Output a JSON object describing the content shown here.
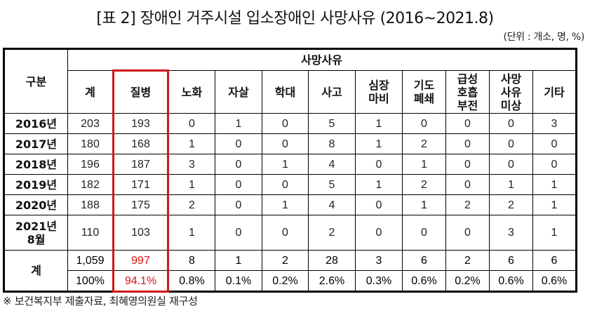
{
  "title": "[표 2] 장애인 거주시설 입소장애인 사망사유 (2016~2021.8)",
  "unit": "(단위 : 개소, 명, %)",
  "table": {
    "row_header": "구분",
    "group_header": "사망사유",
    "columns": [
      "계",
      "질병",
      "노화",
      "자살",
      "학대",
      "사고",
      "심장\n마비",
      "기도\n폐쇄",
      "급성\n호흡\n부전",
      "사망\n사유\n미상",
      "기타"
    ],
    "column_lines": [
      [
        "계"
      ],
      [
        "질병"
      ],
      [
        "노화"
      ],
      [
        "자살"
      ],
      [
        "학대"
      ],
      [
        "사고"
      ],
      [
        "심장",
        "마비"
      ],
      [
        "기도",
        "폐쇄"
      ],
      [
        "급성",
        "호흡",
        "부전"
      ],
      [
        "사망",
        "사유",
        "미상"
      ],
      [
        "기타"
      ]
    ],
    "rows": [
      {
        "label": "2016년",
        "values": [
          "203",
          "193",
          "0",
          "1",
          "0",
          "5",
          "1",
          "0",
          "0",
          "0",
          "3"
        ]
      },
      {
        "label": "2017년",
        "values": [
          "180",
          "168",
          "1",
          "0",
          "0",
          "8",
          "1",
          "2",
          "0",
          "0",
          "0"
        ]
      },
      {
        "label": "2018년",
        "values": [
          "196",
          "187",
          "3",
          "0",
          "1",
          "4",
          "0",
          "1",
          "0",
          "0",
          "0"
        ]
      },
      {
        "label": "2019년",
        "values": [
          "182",
          "171",
          "1",
          "0",
          "0",
          "5",
          "1",
          "2",
          "0",
          "1",
          "1"
        ]
      },
      {
        "label": "2020년",
        "values": [
          "188",
          "175",
          "2",
          "0",
          "1",
          "4",
          "0",
          "1",
          "2",
          "2",
          "1"
        ]
      },
      {
        "label_lines": [
          "2021년",
          "8월"
        ],
        "values": [
          "110",
          "103",
          "1",
          "0",
          "0",
          "2",
          "0",
          "0",
          "0",
          "3",
          "1"
        ]
      }
    ],
    "total": {
      "label": "계",
      "counts": [
        "1,059",
        "997",
        "8",
        "1",
        "2",
        "28",
        "3",
        "6",
        "2",
        "6",
        "6"
      ],
      "percents": [
        "100%",
        "94.1%",
        "0.8%",
        "0.1%",
        "0.2%",
        "2.6%",
        "0.3%",
        "0.6%",
        "0.2%",
        "0.6%",
        "0.6%"
      ]
    },
    "highlight": {
      "column": "질병",
      "color": "#d01818",
      "text_color": "#e01010"
    }
  },
  "note": "※ 보건복지부 제출자료, 최혜영의원실 재구성",
  "chart_data": {
    "type": "table",
    "title": "[표 2] 장애인 거주시설 입소장애인 사망사유 (2016~2021.8)",
    "unit": "개소, 명, %",
    "columns": [
      "구분",
      "계",
      "질병",
      "노화",
      "자살",
      "학대",
      "사고",
      "심장마비",
      "기도폐쇄",
      "급성호흡부전",
      "사망사유미상",
      "기타"
    ],
    "rows": [
      [
        "2016년",
        203,
        193,
        0,
        1,
        0,
        5,
        1,
        0,
        0,
        0,
        3
      ],
      [
        "2017년",
        180,
        168,
        1,
        0,
        0,
        8,
        1,
        2,
        0,
        0,
        0
      ],
      [
        "2018년",
        196,
        187,
        3,
        0,
        1,
        4,
        0,
        1,
        0,
        0,
        0
      ],
      [
        "2019년",
        182,
        171,
        1,
        0,
        0,
        5,
        1,
        2,
        0,
        1,
        1
      ],
      [
        "2020년",
        188,
        175,
        2,
        0,
        1,
        4,
        0,
        1,
        2,
        2,
        1
      ],
      [
        "2021년 8월",
        110,
        103,
        1,
        0,
        0,
        2,
        0,
        0,
        0,
        3,
        1
      ],
      [
        "계",
        1059,
        997,
        8,
        1,
        2,
        28,
        3,
        6,
        2,
        6,
        6
      ],
      [
        "계(%)",
        100,
        94.1,
        0.8,
        0.1,
        0.2,
        2.6,
        0.3,
        0.6,
        0.2,
        0.6,
        0.6
      ]
    ]
  }
}
